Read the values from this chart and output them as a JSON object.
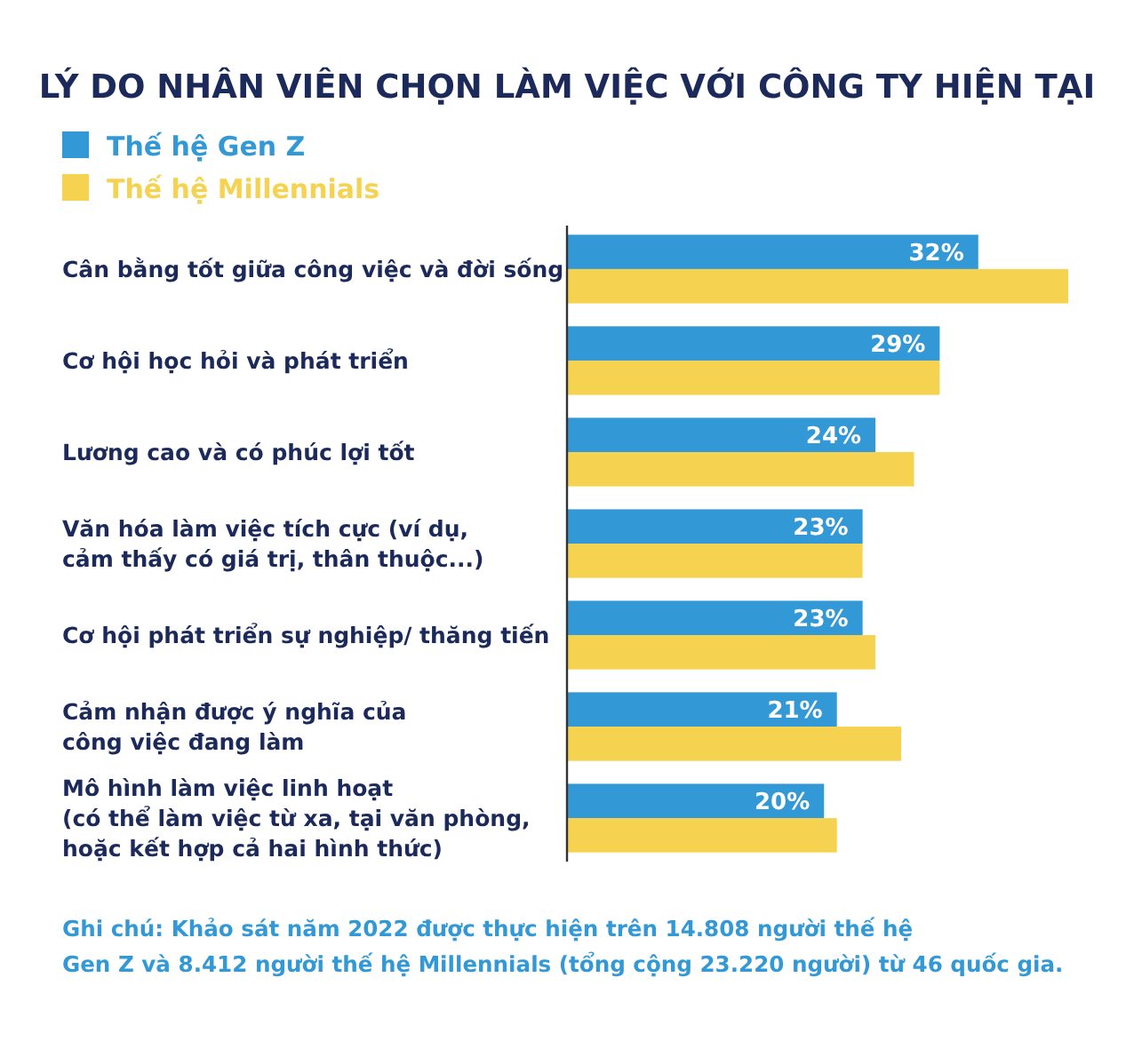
{
  "chart_data": {
    "type": "bar",
    "orientation": "horizontal",
    "title": "LÝ DO NHÂN VIÊN CHỌN LÀM VIỆC VỚI CÔNG TY HIỆN TẠI",
    "categories": [
      "Cân bằng tốt giữa công việc và đời sống",
      "Cơ hội học hỏi và phát triển",
      "Lương cao và có phúc lợi tốt",
      "Văn hóa làm việc tích cực (ví dụ,\ncảm thấy có giá trị, thân thuộc...)",
      "Cơ hội phát triển sự nghiệp/ thăng tiến",
      "Cảm nhận được ý nghĩa của\ncông việc đang làm",
      "Mô hình làm việc linh hoạt\n(có thể làm việc từ xa, tại văn phòng,\nhoặc kết hợp cả hai hình thức)"
    ],
    "series": [
      {
        "name": "Thế hệ Gen Z",
        "color": "#3399d6",
        "values": [
          32,
          29,
          24,
          23,
          23,
          21,
          20
        ],
        "value_labels": [
          "32%",
          "29%",
          "24%",
          "23%",
          "23%",
          "21%",
          "20%"
        ]
      },
      {
        "name": "Thế hệ Millennials",
        "color": "#f5d350",
        "values": [
          39,
          29,
          27,
          23,
          24,
          26,
          21
        ]
      }
    ],
    "legend": "top left",
    "annotations": [
      "Ghi chú: Khảo sát năm 2022 được thực hiện trên 14.808 người thế hệ\nGen Z và 8.412 người thế hệ Millennials (tổng cộng 23.220 người) từ 46 quốc gia."
    ]
  }
}
